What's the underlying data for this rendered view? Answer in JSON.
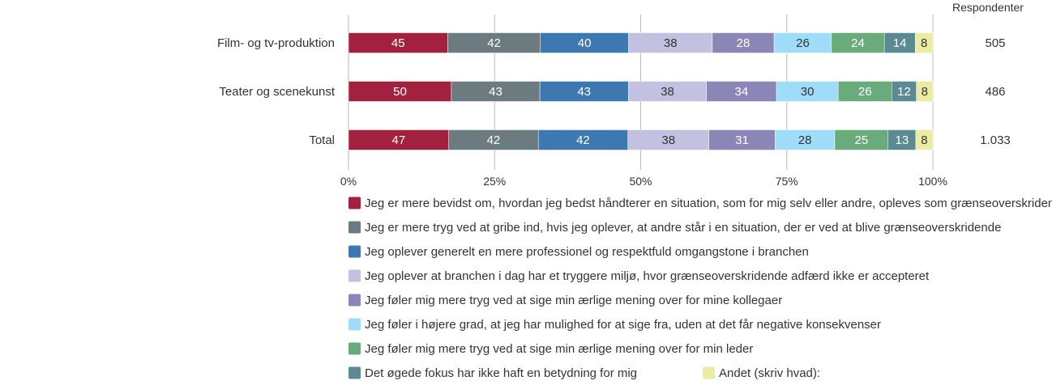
{
  "chart_data": {
    "type": "bar",
    "orientation": "horizontal",
    "stacked": "percent",
    "respondents_header": "Respondenter",
    "categories": [
      "Film- og tv-produktion",
      "Teater og scenekunst",
      "Total"
    ],
    "respondents": [
      "505",
      "486",
      "1.033"
    ],
    "xticks": [
      "0%",
      "25%",
      "50%",
      "75%",
      "100%"
    ],
    "xlim": [
      0,
      100
    ],
    "legend_position": "bottom",
    "series": [
      {
        "name": "Jeg er mere bevidst om, hvordan jeg bedst håndterer en situation, som for mig selv eller andre, opleves som grænseoverskridende",
        "color": "#a3213f",
        "label_color": "#ffffff",
        "values": [
          45,
          50,
          47
        ]
      },
      {
        "name": "Jeg er mere tryg ved at gribe ind, hvis jeg oplever, at andre står i en situation, der er ved at blive grænseoverskridende",
        "color": "#6b7b80",
        "label_color": "#ffffff",
        "values": [
          42,
          43,
          42
        ]
      },
      {
        "name": "Jeg oplever generelt en mere professionel og respektfuld omgangstone i branchen",
        "color": "#3d78b0",
        "label_color": "#ffffff",
        "values": [
          40,
          43,
          42
        ]
      },
      {
        "name": "Jeg oplever at branchen i dag har et tryggere miljø, hvor grænseoverskridende adfærd ikke er accepteret",
        "color": "#c2c1e0",
        "label_color": "#333333",
        "values": [
          38,
          38,
          38
        ]
      },
      {
        "name": "Jeg føler mig mere tryg ved at sige min ærlige mening over for mine kollegaer",
        "color": "#8a86b5",
        "label_color": "#ffffff",
        "values": [
          28,
          34,
          31
        ]
      },
      {
        "name": "Jeg føler i højere grad, at jeg har mulighed for at sige fra, uden at det får negative konsekvenser",
        "color": "#9fdcf7",
        "label_color": "#333333",
        "values": [
          26,
          30,
          28
        ]
      },
      {
        "name": "Jeg føler mig mere tryg ved at sige min ærlige mening over for min leder",
        "color": "#6aab7c",
        "label_color": "#ffffff",
        "values": [
          24,
          26,
          25
        ]
      },
      {
        "name": "Det øgede fokus har ikke haft en betydning for mig",
        "color": "#5b8a92",
        "label_color": "#ffffff",
        "values": [
          14,
          12,
          13
        ]
      },
      {
        "name": "Andet (skriv hvad):",
        "color": "#ebeba3",
        "label_color": "#333333",
        "values": [
          8,
          8,
          8
        ]
      }
    ]
  }
}
